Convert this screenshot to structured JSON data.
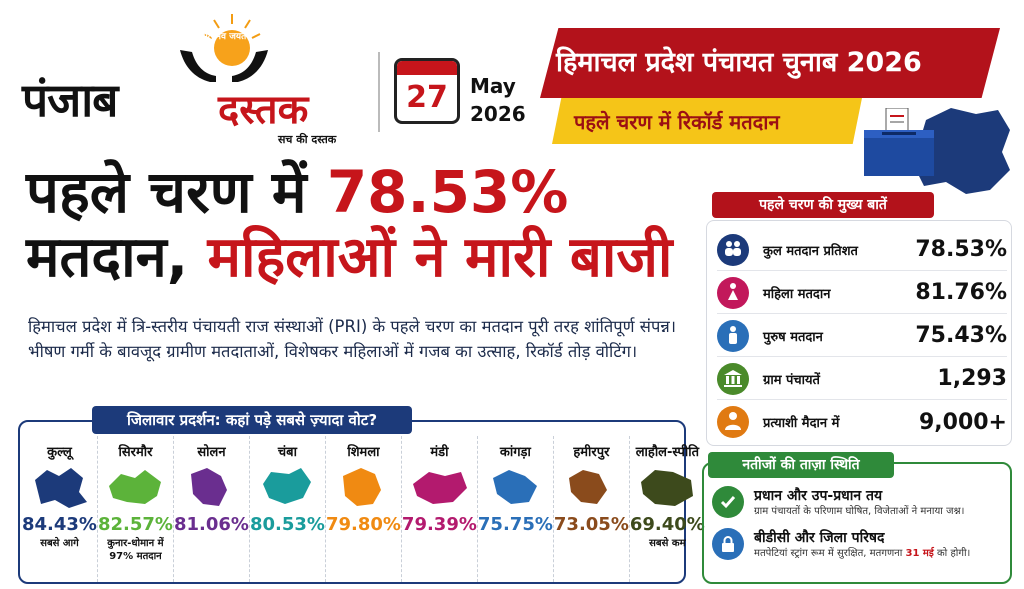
{
  "brand": {
    "emblem_text": "सत्यमेव जयते",
    "name_left": "पंजाब",
    "name_right": "दस्तक",
    "tagline": "सच की दस्तक"
  },
  "date": {
    "day": "27",
    "month": "May",
    "year": "2026"
  },
  "banner": {
    "title": "हिमाचल प्रदेश पंचायत चुनाब 2026",
    "subtitle": "पहले चरण में रिकॉर्ड मतदान"
  },
  "headline": {
    "line1_prefix": "पहले चरण में ",
    "line1_pct": "78.53%",
    "line2_prefix": "मतदान, ",
    "line2_red": "महिलाओं ने मारी बाजी"
  },
  "summary": "हिमाचल प्रदेश में त्रि-स्तरीय पंचायती राज संस्थाओं (PRI) के पहले चरण का मतदान पूरी तरह शांतिपूर्ण संपन्न। भीषण गर्मी के बावजूद ग्रामीण मतदाताओं, विशेषकर महिलाओं में गजब का उत्साह, रिकॉर्ड तोड़ वोटिंग।",
  "district_panel": {
    "title": "जिलावार प्रदर्शन: कहां पड़े सबसे ज़्यादा वोट?",
    "districts": [
      {
        "name": "कुल्लू",
        "pct": "84.43%",
        "note": "सबसे आगे",
        "color": "#1c3a7a"
      },
      {
        "name": "सिरमौर",
        "pct": "82.57%",
        "note": "कुनार-धोमान में 97% मतदान",
        "color": "#5cb33a"
      },
      {
        "name": "सोलन",
        "pct": "81.06%",
        "note": "",
        "color": "#6a2e8f"
      },
      {
        "name": "चंबा",
        "pct": "80.53%",
        "note": "",
        "color": "#1a9c9c"
      },
      {
        "name": "शिमला",
        "pct": "79.80%",
        "note": "",
        "color": "#f08a12"
      },
      {
        "name": "मंडी",
        "pct": "79.39%",
        "note": "",
        "color": "#b31a6e"
      },
      {
        "name": "कांगड़ा",
        "pct": "75.75%",
        "note": "",
        "color": "#2a6fb8"
      },
      {
        "name": "हमीरपुर",
        "pct": "73.05%",
        "note": "",
        "color": "#8a4b1c"
      },
      {
        "name": "लाहौल-स्पीति",
        "pct": "69.40%",
        "note": "सबसे कम",
        "color": "#3d4a1c"
      }
    ]
  },
  "facts": {
    "title": "पहले चरण की मुख्य बातें",
    "items": [
      {
        "label": "कुल मतदान प्रतिशत",
        "value": "78.53%",
        "icon": "people-icon",
        "color": "#1c3a7a"
      },
      {
        "label": "महिला मतदान",
        "value": "81.76%",
        "icon": "woman-icon",
        "color": "#c2185b"
      },
      {
        "label": "पुरुष मतदान",
        "value": "75.43%",
        "icon": "man-icon",
        "color": "#2a6fb8"
      },
      {
        "label": "ग्राम पंचायतें",
        "value": "1,293",
        "icon": "building-icon",
        "color": "#4a8a2a"
      },
      {
        "label": "प्रत्याशी मैदान में",
        "value": "9,000+",
        "icon": "candidate-icon",
        "color": "#e07a12"
      }
    ]
  },
  "status": {
    "title": "नतीजों की ताज़ा स्थिति",
    "items": [
      {
        "title": "प्रधान और उप-प्रधान तय",
        "sub": "ग्राम पंचायतों के परिणाम घोषित, विजेताओं ने मनाया जश्न।",
        "icon": "check-icon",
        "color": "#2f8a3a"
      },
      {
        "title": "बीडीसी और जिला परिषद",
        "sub_before": "मतपेटियां स्ट्रांग रूम में सुरक्षित, मतगणना ",
        "sub_highlight": "31 मई",
        "sub_after": " को होगी।",
        "icon": "lock-icon",
        "color": "#2a6fb8"
      }
    ]
  }
}
